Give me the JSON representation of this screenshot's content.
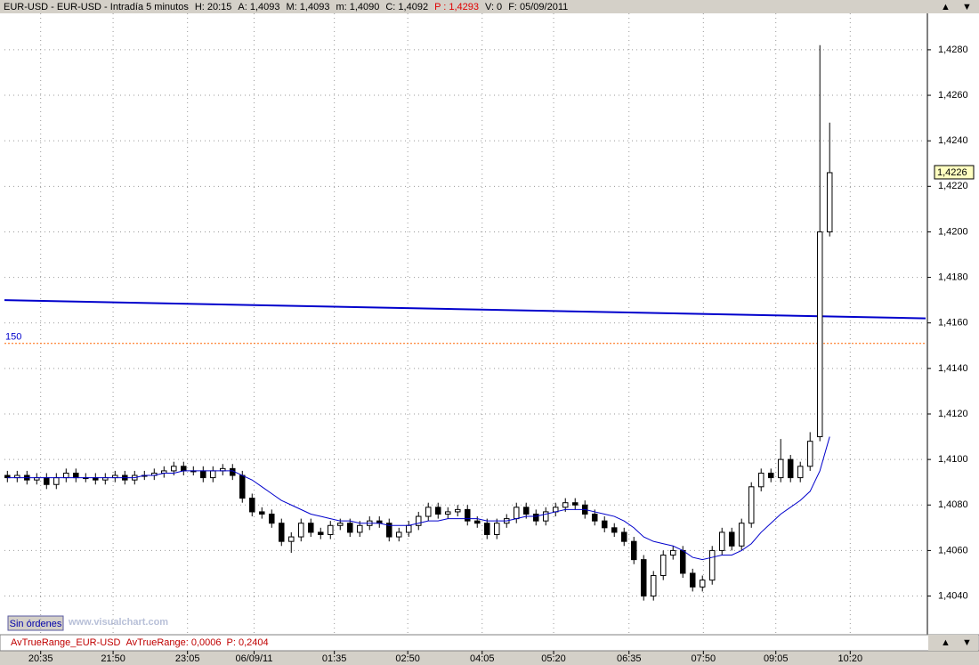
{
  "header": {
    "parts": [
      {
        "text": "EUR-USD - EUR-USD - Intradía 5 minutos",
        "color": "#000000"
      },
      {
        "text": "H: 20:15",
        "color": "#000000"
      },
      {
        "text": "A: 1,4093",
        "color": "#000000"
      },
      {
        "text": "M: 1,4093",
        "color": "#000000"
      },
      {
        "text": "m: 1,4090",
        "color": "#000000"
      },
      {
        "text": "C: 1,4092",
        "color": "#000000"
      },
      {
        "text": "P : 1,4293",
        "color": "#e00000"
      },
      {
        "text": "V: 0",
        "color": "#000000"
      },
      {
        "text": "F: 05/09/2011",
        "color": "#000000"
      }
    ]
  },
  "indicator": {
    "parts": [
      {
        "text": "AvTrueRange_EUR-USD",
        "color": "#c00000"
      },
      {
        "text": "AvTrueRange: 0,0006",
        "color": "#c00000"
      },
      {
        "text": "P: 0,2404",
        "color": "#c00000"
      }
    ]
  },
  "button": "Sin órdenes",
  "watermark": "www.visualchart.com",
  "chart_data": {
    "type": "candlestick",
    "xlim": [
      -0.3,
      93.8
    ],
    "ylim": [
      1.4023,
      1.4296
    ],
    "xticks": [
      {
        "value": 3.4,
        "label": "20:35"
      },
      {
        "value": 10.8,
        "label": "21:50"
      },
      {
        "value": 18.4,
        "label": "23:05"
      },
      {
        "value": 25.2,
        "label": "06/09/11"
      },
      {
        "value": 33.4,
        "label": "01:35"
      },
      {
        "value": 40.9,
        "label": "02:50"
      },
      {
        "value": 48.5,
        "label": "04:05"
      },
      {
        "value": 55.8,
        "label": "05:20"
      },
      {
        "value": 63.5,
        "label": "06:35"
      },
      {
        "value": 71.1,
        "label": "07:50"
      },
      {
        "value": 78.5,
        "label": "09:05"
      },
      {
        "value": 86.1,
        "label": "10:20"
      }
    ],
    "yticks": [
      {
        "value": 1.404,
        "label": "1,4040"
      },
      {
        "value": 1.406,
        "label": "1,4060"
      },
      {
        "value": 1.408,
        "label": "1,4080"
      },
      {
        "value": 1.41,
        "label": "1,4100"
      },
      {
        "value": 1.412,
        "label": "1,4120"
      },
      {
        "value": 1.414,
        "label": "1,4140"
      },
      {
        "value": 1.416,
        "label": "1,4160"
      },
      {
        "value": 1.418,
        "label": "1,4180"
      },
      {
        "value": 1.42,
        "label": "1,4200"
      },
      {
        "value": 1.422,
        "label": "1,4220"
      },
      {
        "value": 1.424,
        "label": "1,4240"
      },
      {
        "value": 1.426,
        "label": "1,4260"
      },
      {
        "value": 1.428,
        "label": "1,4280"
      }
    ],
    "grid": true,
    "last_price": {
      "value": 1.4226,
      "label": "1,4226"
    },
    "open": [
      1.4093,
      1.4092,
      1.4093,
      1.4091,
      1.4092,
      1.4089,
      1.4092,
      1.4094,
      1.4092,
      1.4092,
      1.4091,
      1.4092,
      1.4093,
      1.4091,
      1.4093,
      1.4093,
      1.4094,
      1.4095,
      1.4097,
      1.4095,
      1.4095,
      1.4092,
      1.4095,
      1.4096,
      1.4093,
      1.4083,
      1.4077,
      1.4076,
      1.4072,
      1.4064,
      1.4066,
      1.4072,
      1.4068,
      1.4067,
      1.4071,
      1.4072,
      1.4068,
      1.4071,
      1.4073,
      1.4072,
      1.4066,
      1.4068,
      1.4071,
      1.4075,
      1.4079,
      1.4076,
      1.4077,
      1.4078,
      1.4073,
      1.4072,
      1.4067,
      1.4072,
      1.4074,
      1.4079,
      1.4076,
      1.4073,
      1.4077,
      1.4079,
      1.4081,
      1.408,
      1.4076,
      1.4073,
      1.407,
      1.4068,
      1.4064,
      1.4056,
      1.404,
      1.4049,
      1.4058,
      1.406,
      1.405,
      1.4044,
      1.4047,
      1.406,
      1.4068,
      1.4062,
      1.4072,
      1.4088,
      1.4094,
      1.4092,
      1.41,
      1.4092,
      1.4097,
      1.411,
      1.42
    ],
    "high": [
      1.4095,
      1.4095,
      1.4095,
      1.4094,
      1.4094,
      1.4094,
      1.4096,
      1.4096,
      1.4094,
      1.4094,
      1.4094,
      1.4095,
      1.4095,
      1.4095,
      1.4095,
      1.4096,
      1.4097,
      1.4099,
      1.4099,
      1.4097,
      1.4097,
      1.4097,
      1.4098,
      1.4098,
      1.4095,
      1.4085,
      1.4079,
      1.4078,
      1.4074,
      1.4068,
      1.4074,
      1.4074,
      1.407,
      1.4073,
      1.4074,
      1.4074,
      1.4073,
      1.4075,
      1.4075,
      1.4074,
      1.407,
      1.4073,
      1.4077,
      1.4081,
      1.4081,
      1.4079,
      1.408,
      1.408,
      1.4075,
      1.4074,
      1.4074,
      1.4076,
      1.4081,
      1.4081,
      1.4078,
      1.4079,
      1.4081,
      1.4083,
      1.4083,
      1.4082,
      1.4078,
      1.4075,
      1.4072,
      1.407,
      1.4066,
      1.4058,
      1.4051,
      1.406,
      1.4062,
      1.4062,
      1.4052,
      1.4049,
      1.4062,
      1.407,
      1.407,
      1.4074,
      1.409,
      1.4096,
      1.4096,
      1.4109,
      1.4102,
      1.4099,
      1.4112,
      1.4282,
      1.4248
    ],
    "low": [
      1.409,
      1.409,
      1.4089,
      1.4089,
      1.4087,
      1.4087,
      1.409,
      1.409,
      1.409,
      1.4089,
      1.4089,
      1.409,
      1.4089,
      1.4089,
      1.4091,
      1.4091,
      1.4092,
      1.4093,
      1.4093,
      1.4093,
      1.409,
      1.409,
      1.4093,
      1.4091,
      1.4081,
      1.4075,
      1.4074,
      1.407,
      1.4062,
      1.4059,
      1.4064,
      1.4066,
      1.4065,
      1.4065,
      1.4069,
      1.4066,
      1.4066,
      1.4069,
      1.407,
      1.4064,
      1.4064,
      1.4066,
      1.4069,
      1.4073,
      1.4074,
      1.4074,
      1.4075,
      1.4071,
      1.407,
      1.4065,
      1.4065,
      1.407,
      1.4072,
      1.4074,
      1.4071,
      1.4071,
      1.4075,
      1.4077,
      1.4078,
      1.4074,
      1.4071,
      1.4068,
      1.4066,
      1.4062,
      1.4054,
      1.4038,
      1.4038,
      1.4047,
      1.4056,
      1.4048,
      1.4042,
      1.4042,
      1.4045,
      1.4058,
      1.406,
      1.406,
      1.407,
      1.4086,
      1.409,
      1.409,
      1.409,
      1.409,
      1.4095,
      1.4108,
      1.4198
    ],
    "close": [
      1.4092,
      1.4093,
      1.4091,
      1.4092,
      1.4089,
      1.4092,
      1.4094,
      1.4092,
      1.4092,
      1.4091,
      1.4092,
      1.4093,
      1.4091,
      1.4093,
      1.4093,
      1.4094,
      1.4095,
      1.4097,
      1.4095,
      1.4095,
      1.4092,
      1.4095,
      1.4096,
      1.4093,
      1.4083,
      1.4077,
      1.4076,
      1.4072,
      1.4064,
      1.4066,
      1.4072,
      1.4068,
      1.4067,
      1.4071,
      1.4072,
      1.4068,
      1.4071,
      1.4073,
      1.4072,
      1.4066,
      1.4068,
      1.4071,
      1.4075,
      1.4079,
      1.4076,
      1.4077,
      1.4078,
      1.4073,
      1.4072,
      1.4067,
      1.4072,
      1.4074,
      1.4079,
      1.4076,
      1.4073,
      1.4077,
      1.4079,
      1.4081,
      1.408,
      1.4076,
      1.4073,
      1.407,
      1.4068,
      1.4064,
      1.4056,
      1.404,
      1.4049,
      1.4058,
      1.406,
      1.405,
      1.4044,
      1.4047,
      1.406,
      1.4068,
      1.4062,
      1.4072,
      1.4088,
      1.4094,
      1.4092,
      1.41,
      1.4092,
      1.4097,
      1.4108,
      1.42,
      1.4226
    ],
    "ma": {
      "color": "#0000cc",
      "values": [
        1.4092,
        1.4092,
        1.4092,
        1.4092,
        1.4092,
        1.4092,
        1.4092,
        1.4092,
        1.4092,
        1.4092,
        1.4092,
        1.4092,
        1.4092,
        1.4092,
        1.4093,
        1.4093,
        1.4094,
        1.4094,
        1.4095,
        1.4095,
        1.4095,
        1.4095,
        1.4095,
        1.4095,
        1.4093,
        1.4091,
        1.4088,
        1.4085,
        1.4082,
        1.408,
        1.4078,
        1.4076,
        1.4075,
        1.4074,
        1.4073,
        1.4073,
        1.4072,
        1.4072,
        1.4072,
        1.4071,
        1.4071,
        1.4071,
        1.4072,
        1.4073,
        1.4073,
        1.4074,
        1.4074,
        1.4074,
        1.4074,
        1.4073,
        1.4073,
        1.4073,
        1.4074,
        1.4075,
        1.4075,
        1.4076,
        1.4077,
        1.4078,
        1.4078,
        1.4078,
        1.4077,
        1.4076,
        1.4075,
        1.4073,
        1.407,
        1.4066,
        1.4064,
        1.4063,
        1.4062,
        1.406,
        1.4057,
        1.4056,
        1.4057,
        1.4058,
        1.4058,
        1.406,
        1.4063,
        1.4068,
        1.4072,
        1.4076,
        1.4079,
        1.4082,
        1.4086,
        1.4095,
        1.411
      ]
    },
    "long_ma": {
      "label": "150",
      "color": "#0000cc",
      "x": [
        -0.3,
        93.8
      ],
      "values": [
        1.417,
        1.4162
      ]
    },
    "level": {
      "value": 1.4151,
      "color": "#ff6600"
    }
  }
}
